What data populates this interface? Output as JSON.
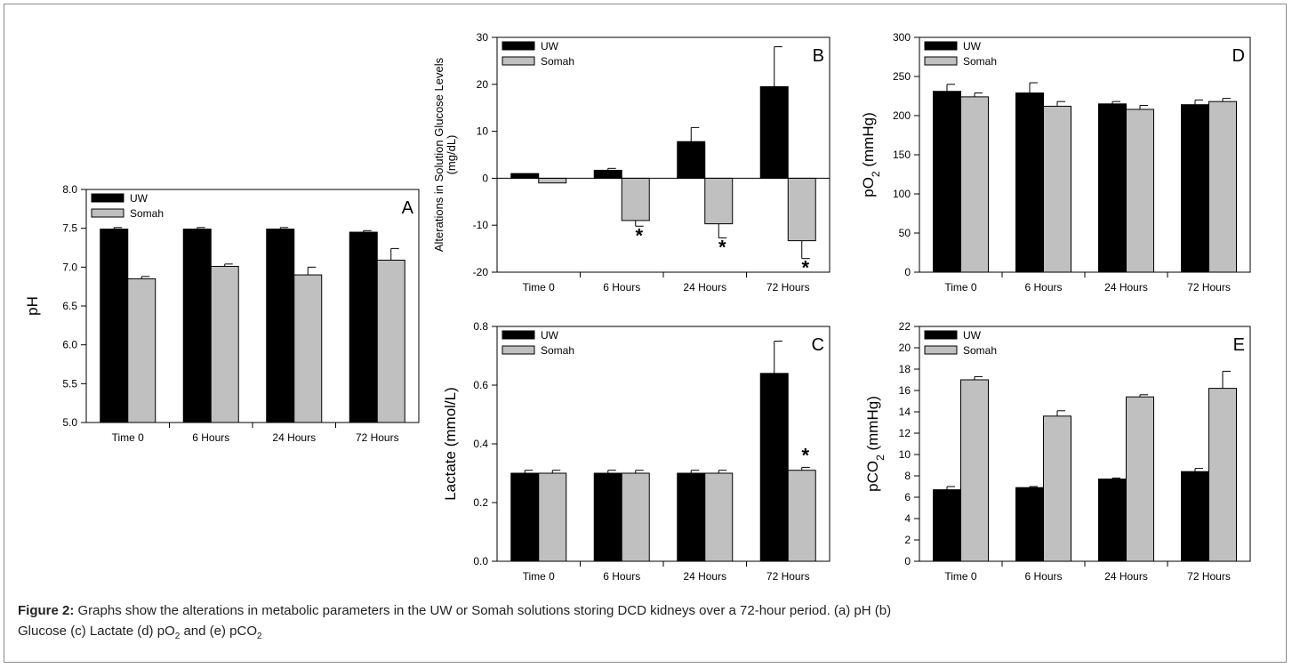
{
  "figure": {
    "caption_label": "Figure 2:",
    "caption_lines": [
      "Graphs show the alterations in metabolic parameters in the UW or Somah solutions storing DCD kidneys over a 72-hour period. (a) pH (b)",
      "Glucose (c) Lactate (d) pO",
      "2",
      " and (e) pCO",
      "2"
    ]
  },
  "colors": {
    "uw": "#000000",
    "somah": "#c0c0c0"
  },
  "chart_data": [
    {
      "id": "A",
      "type": "bar",
      "panel_label": "A",
      "ylabel": "pH",
      "ylim": [
        5.0,
        8.0
      ],
      "yticks": [
        5.0,
        5.5,
        6.0,
        6.5,
        7.0,
        7.5,
        8.0
      ],
      "ytick_labels": [
        "5.0",
        "5.5",
        "6.0",
        "6.5",
        "7.0",
        "7.5",
        "8.0"
      ],
      "categories": [
        "Time 0",
        "6 Hours",
        "24 Hours",
        "72 Hours"
      ],
      "series": [
        {
          "name": "UW",
          "values": [
            7.49,
            7.49,
            7.49,
            7.45
          ],
          "errors": [
            0.02,
            0.02,
            0.02,
            0.02
          ]
        },
        {
          "name": "Somah",
          "values": [
            6.85,
            7.01,
            6.9,
            7.09
          ],
          "errors": [
            0.03,
            0.03,
            0.1,
            0.15
          ]
        }
      ],
      "stars": [],
      "legend": "top-left"
    },
    {
      "id": "B",
      "type": "bar",
      "panel_label": "B",
      "ylabel": "Alterations in Solution Glucose Levels",
      "ylabel2": "(mg/dL)",
      "ylim": [
        -20,
        30
      ],
      "yticks": [
        -20,
        -10,
        0,
        10,
        20,
        30
      ],
      "ytick_labels": [
        "-20",
        "-10",
        "0",
        "10",
        "20",
        "30"
      ],
      "categories": [
        "Time 0",
        "6 Hours",
        "24 Hours",
        "72 Hours"
      ],
      "series": [
        {
          "name": "UW",
          "values": [
            1.0,
            1.7,
            7.8,
            19.5
          ],
          "errors": [
            0.0,
            0.4,
            3.0,
            8.5
          ]
        },
        {
          "name": "Somah",
          "values": [
            -1.0,
            -9.0,
            -9.7,
            -13.3
          ],
          "errors": [
            0.0,
            1.2,
            3.0,
            3.8
          ]
        }
      ],
      "stars": [
        {
          "category": 1,
          "series": 1,
          "text": "*"
        },
        {
          "category": 2,
          "series": 1,
          "text": "*"
        },
        {
          "category": 3,
          "series": 1,
          "text": "*"
        }
      ],
      "legend": "top-left"
    },
    {
      "id": "C",
      "type": "bar",
      "panel_label": "C",
      "ylabel": "Lactate (mmol/L)",
      "ylim": [
        0.0,
        0.8
      ],
      "yticks": [
        0.0,
        0.2,
        0.4,
        0.6,
        0.8
      ],
      "ytick_labels": [
        "0.0",
        "0.2",
        "0.4",
        "0.6",
        "0.8"
      ],
      "categories": [
        "Time 0",
        "6 Hours",
        "24 Hours",
        "72 Hours"
      ],
      "series": [
        {
          "name": "UW",
          "values": [
            0.3,
            0.3,
            0.3,
            0.64
          ],
          "errors": [
            0.01,
            0.01,
            0.01,
            0.11
          ]
        },
        {
          "name": "Somah",
          "values": [
            0.3,
            0.3,
            0.3,
            0.31
          ],
          "errors": [
            0.01,
            0.01,
            0.01,
            0.01
          ]
        }
      ],
      "stars": [
        {
          "category": 3,
          "series": 1,
          "text": "*"
        }
      ],
      "legend": "top-left"
    },
    {
      "id": "D",
      "type": "bar",
      "panel_label": "D",
      "ylabel": "pO",
      "ylabel_sub": "2",
      "ylabel_unit": " (mmHg)",
      "ylim": [
        0,
        300
      ],
      "yticks": [
        0,
        50,
        100,
        150,
        200,
        250,
        300
      ],
      "ytick_labels": [
        "0",
        "50",
        "100",
        "150",
        "200",
        "250",
        "300"
      ],
      "categories": [
        "Time 0",
        "6 Hours",
        "24 Hours",
        "72 Hours"
      ],
      "series": [
        {
          "name": "UW",
          "values": [
            231,
            229,
            215,
            214
          ],
          "errors": [
            9,
            13,
            3,
            6
          ]
        },
        {
          "name": "Somah",
          "values": [
            224,
            212,
            208,
            218
          ],
          "errors": [
            5,
            6,
            5,
            4
          ]
        }
      ],
      "stars": [],
      "legend": "top-left"
    },
    {
      "id": "E",
      "type": "bar",
      "panel_label": "E",
      "ylabel": "pCO",
      "ylabel_sub": "2",
      "ylabel_unit": " (mmHg)",
      "ylim": [
        0,
        22
      ],
      "yticks": [
        0,
        2,
        4,
        6,
        8,
        10,
        12,
        14,
        16,
        18,
        20,
        22
      ],
      "ytick_labels": [
        "0",
        "2",
        "4",
        "6",
        "8",
        "10",
        "12",
        "14",
        "16",
        "18",
        "20",
        "22"
      ],
      "categories": [
        "Time 0",
        "6 Hours",
        "24 Hours",
        "72 Hours"
      ],
      "series": [
        {
          "name": "UW",
          "values": [
            6.7,
            6.9,
            7.7,
            8.4
          ],
          "errors": [
            0.3,
            0.1,
            0.1,
            0.3
          ]
        },
        {
          "name": "Somah",
          "values": [
            17.0,
            13.6,
            15.4,
            16.2
          ],
          "errors": [
            0.3,
            0.5,
            0.2,
            1.6
          ]
        }
      ],
      "stars": [],
      "legend": "top-left"
    }
  ]
}
